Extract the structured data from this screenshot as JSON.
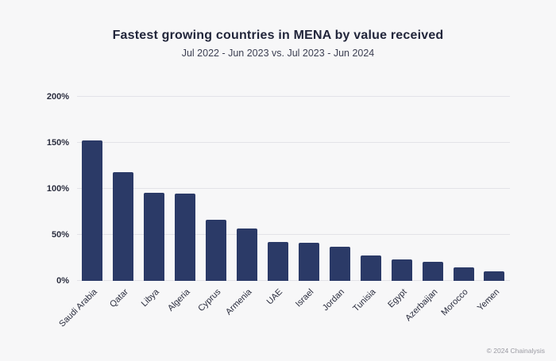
{
  "header": {
    "title": "Fastest growing countries in MENA by value received",
    "subtitle": "Jul 2022 - Jun 2023 vs. Jul 2023 - Jun 2024"
  },
  "footer": {
    "credit": "© 2024 Chainalysis"
  },
  "colors": {
    "background": "#F7F7F8",
    "bar": "#2B3A67",
    "gridline": "#E3E3E8"
  },
  "chart_data": {
    "type": "bar",
    "title": "Fastest growing countries in MENA by value received",
    "subtitle": "Jul 2022 - Jun 2023 vs. Jul 2023 - Jun 2024",
    "categories": [
      "Saudi Arabia",
      "Qatar",
      "Libya",
      "Algeria",
      "Cyprus",
      "Armenia",
      "UAE",
      "Israel",
      "Jordan",
      "Tunisia",
      "Egypt",
      "Azerbaijan",
      "Morocco",
      "Yemen"
    ],
    "values": [
      153,
      118,
      96,
      95,
      66,
      57,
      42,
      41,
      37,
      28,
      23,
      21,
      15,
      10
    ],
    "value_unit": "%",
    "xlabel": "",
    "ylabel": "",
    "ylim": [
      0,
      200
    ],
    "yticks": [
      0,
      50,
      100,
      150,
      200
    ],
    "ytick_suffix": "%",
    "grid": true,
    "legend": false,
    "bar_color": "#2B3A67"
  }
}
